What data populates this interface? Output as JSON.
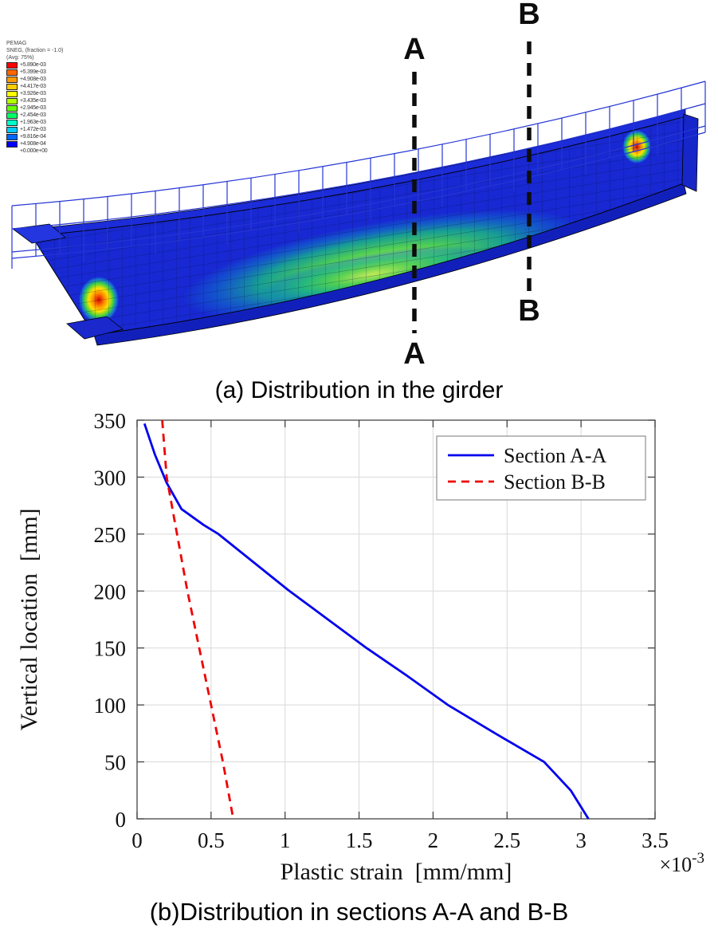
{
  "figure": {
    "caption_a": "(a) Distribution in the girder",
    "caption_b": "(b)Distribution in sections A-A and B-B"
  },
  "fea": {
    "legend": {
      "title_lines": [
        "PEMAG",
        "SNEG, (fraction = -1.0)",
        "(Avg: 75%)"
      ],
      "values": [
        "+5.890e-03",
        "+5.399e-03",
        "+4.908e-03",
        "+4.417e-03",
        "+3.926e-03",
        "+3.435e-03",
        "+2.945e-03",
        "+2.454e-03",
        "+1.963e-03",
        "+1.472e-03",
        "+9.816e-04",
        "+4.908e-04",
        "+0.000e+00"
      ],
      "colors": [
        "#ff0000",
        "#ff6600",
        "#ff9900",
        "#ffcc00",
        "#ffff00",
        "#b2ff00",
        "#66ff00",
        "#00ff66",
        "#00ffcc",
        "#00ccff",
        "#0066ff",
        "#0000ff"
      ]
    },
    "section_labels": {
      "a": "A",
      "b": "B"
    }
  },
  "chart_data": {
    "type": "line",
    "title": "",
    "xlabel": "Plastic strain  [mm/mm]",
    "ylabel": "Vertical location  [mm]",
    "x_scale_label": {
      "base": "×10",
      "exponent": "-3"
    },
    "xlim": [
      0,
      3.5
    ],
    "ylim": [
      0,
      350
    ],
    "xticks": [
      0,
      0.5,
      1,
      1.5,
      2,
      2.5,
      3,
      3.5
    ],
    "yticks": [
      0,
      50,
      100,
      150,
      200,
      250,
      300,
      350
    ],
    "grid": true,
    "legend_position": "top-right",
    "series": [
      {
        "name": "Section A-A",
        "color": "#0000ee",
        "style": "solid",
        "points": [
          [
            0.05,
            347
          ],
          [
            0.12,
            320
          ],
          [
            0.2,
            295
          ],
          [
            0.3,
            272
          ],
          [
            0.45,
            258
          ],
          [
            0.55,
            250
          ],
          [
            0.78,
            226
          ],
          [
            1.02,
            201
          ],
          [
            1.28,
            176
          ],
          [
            1.55,
            150
          ],
          [
            1.82,
            126
          ],
          [
            2.1,
            100
          ],
          [
            2.42,
            75
          ],
          [
            2.75,
            50
          ],
          [
            2.93,
            25
          ],
          [
            3.05,
            0
          ]
        ]
      },
      {
        "name": "Section B-B",
        "color": "#ee0000",
        "style": "dashed",
        "points": [
          [
            0.17,
            350
          ],
          [
            0.2,
            300
          ],
          [
            0.27,
            250
          ],
          [
            0.34,
            200
          ],
          [
            0.42,
            150
          ],
          [
            0.5,
            100
          ],
          [
            0.58,
            50
          ],
          [
            0.65,
            0
          ]
        ]
      }
    ]
  }
}
